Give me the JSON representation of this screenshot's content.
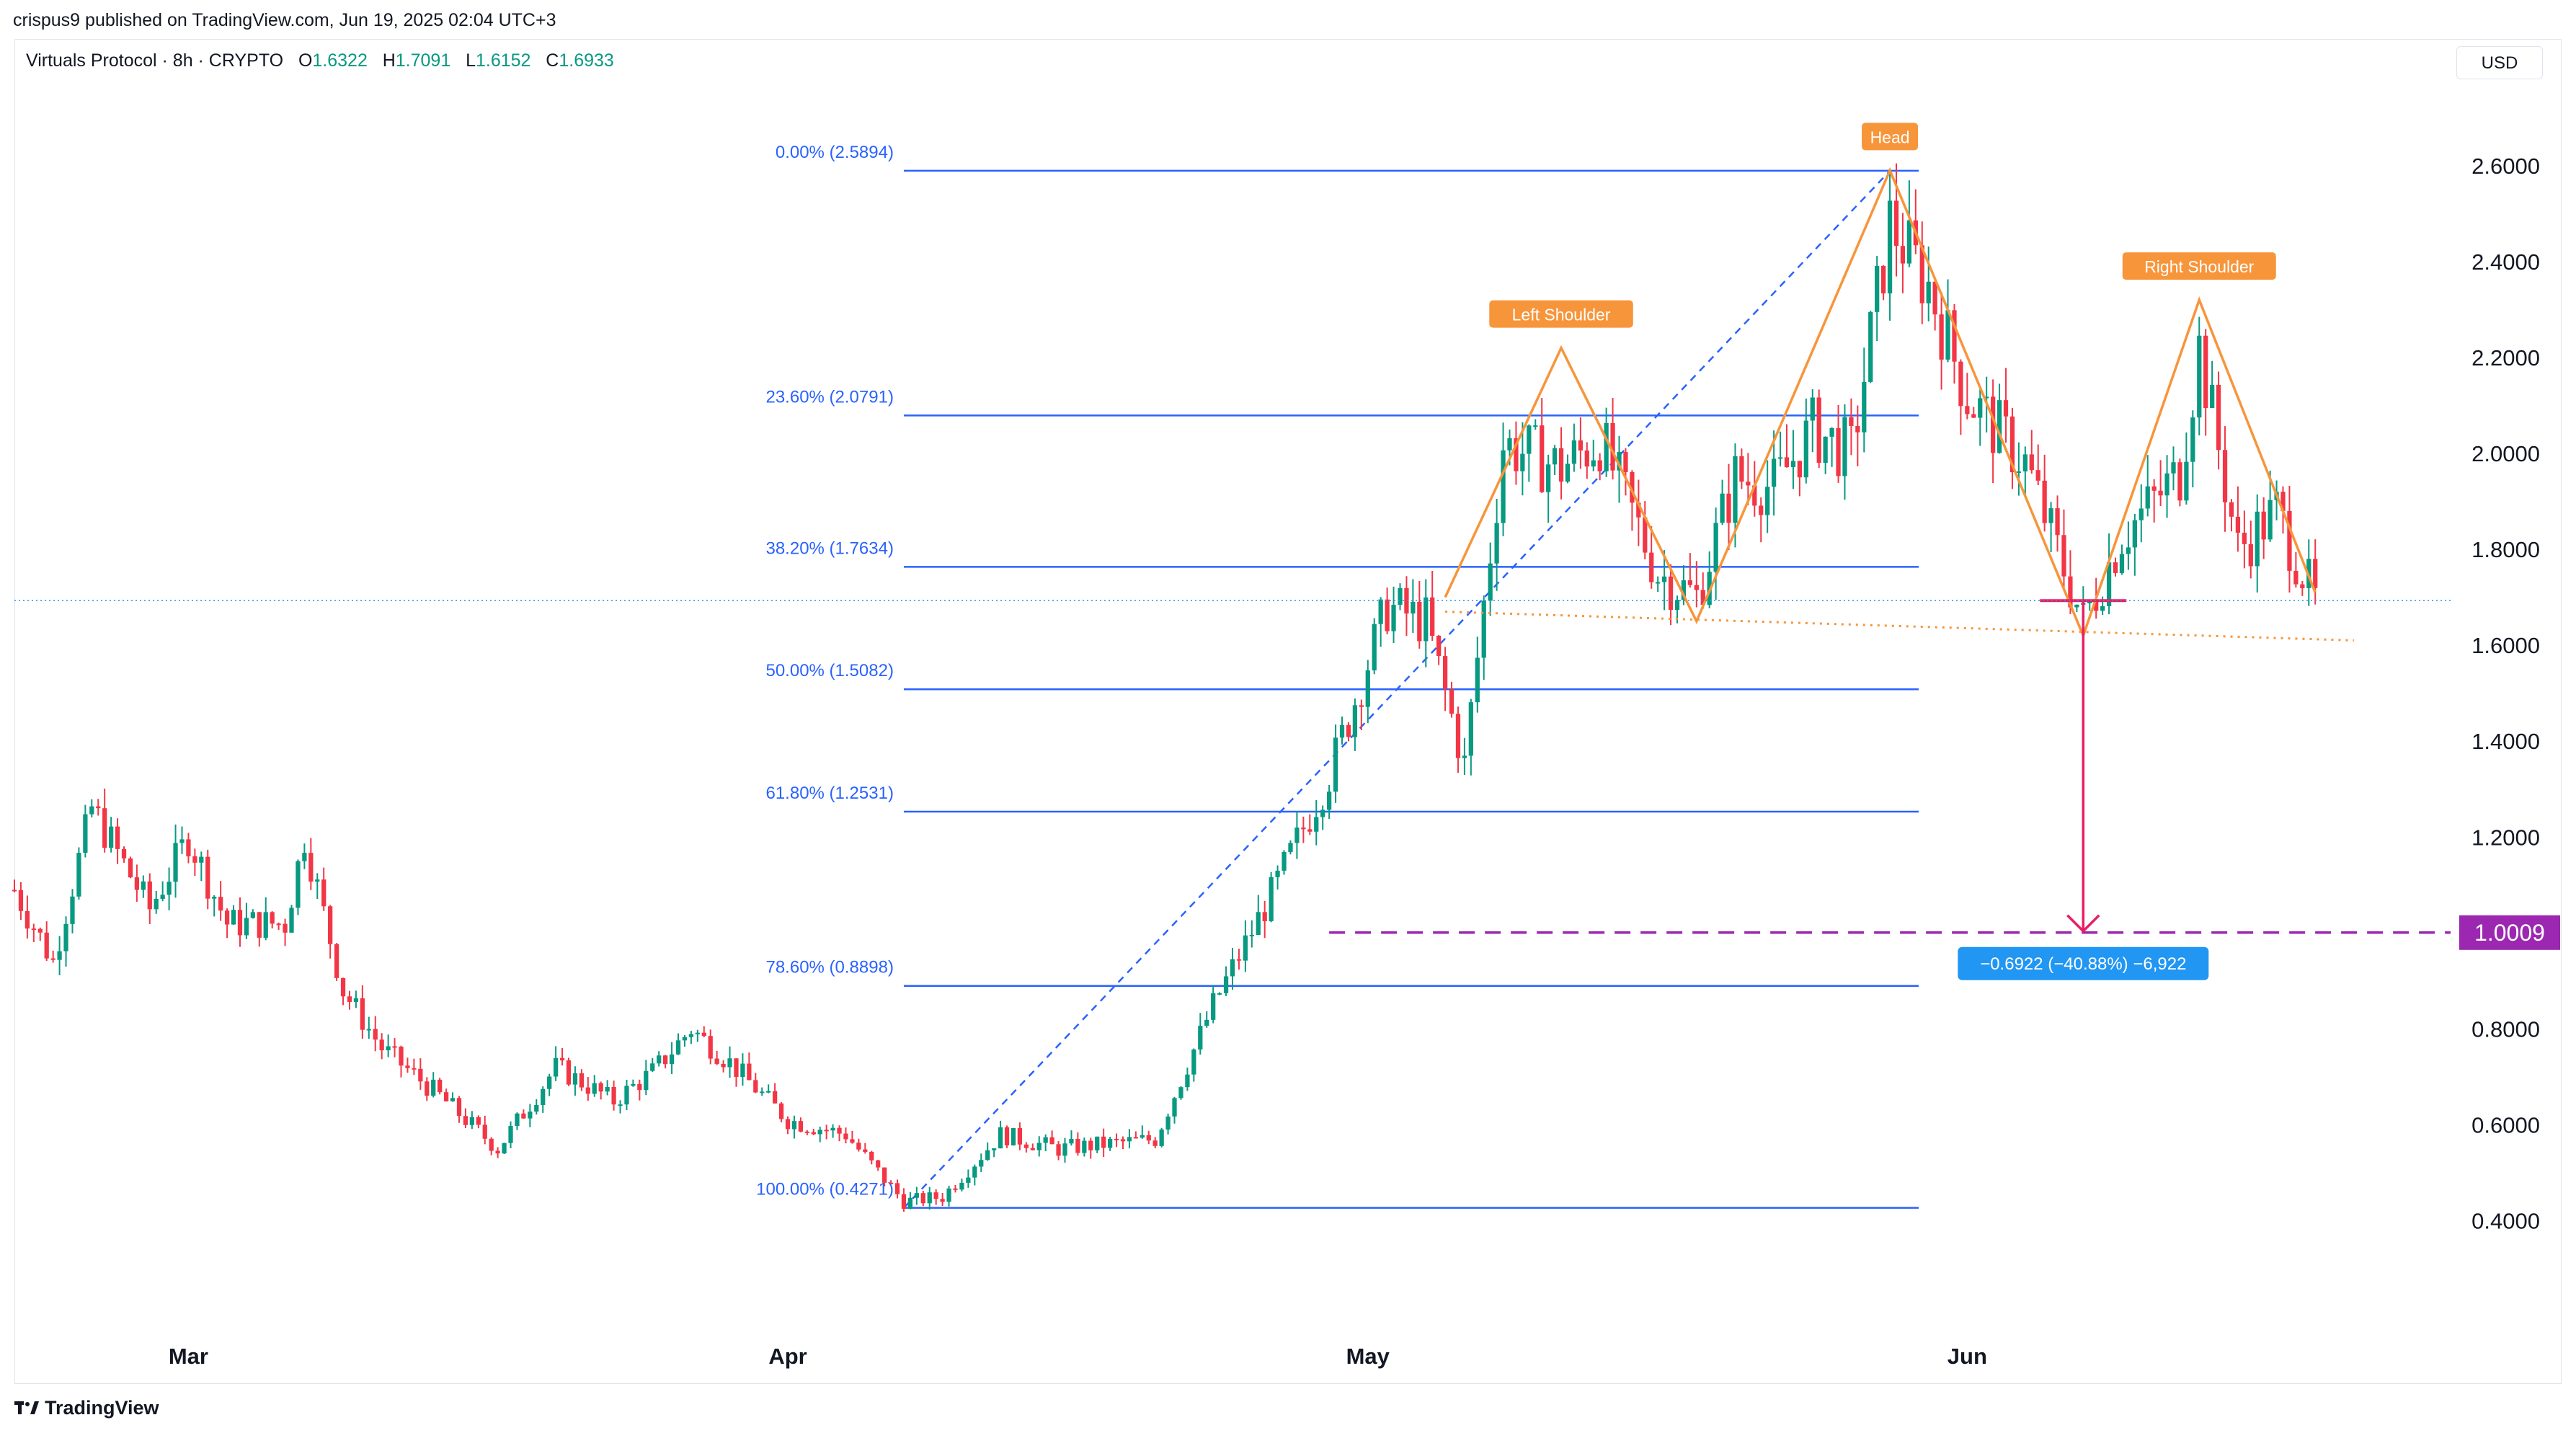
{
  "header": {
    "publisher_line": "crispus9 published on TradingView.com, Jun 19, 2025 02:04 UTC+3",
    "symbol": "Virtuals Protocol · 8h · CRYPTO",
    "ohlc": {
      "o_label": "O",
      "o": "1.6322",
      "h_label": "H",
      "h": "1.7091",
      "l_label": "L",
      "l": "1.6152",
      "c_label": "C",
      "c": "1.6933"
    },
    "currency": "USD"
  },
  "footer": {
    "brand": "TradingView"
  },
  "colors": {
    "up": "#089981",
    "down": "#f23645",
    "fib": "#2962ff",
    "pattern": "#f7953b",
    "target": "#9c27b0",
    "measure": "#2196f3",
    "arrow": "#e91e63",
    "axis_text": "#131722"
  },
  "chart_data": {
    "type": "candlestick",
    "title": "",
    "y_axis": {
      "ticks": [
        0.4,
        0.6,
        0.8,
        1.0,
        1.2,
        1.4,
        1.6,
        1.8,
        2.0,
        2.2,
        2.4,
        2.6
      ],
      "tick_labels": [
        "0.4000",
        "0.6000",
        "0.8000",
        "1.0000",
        "1.2000",
        "1.4000",
        "1.6000",
        "1.8000",
        "2.0000",
        "2.2000",
        "2.4000",
        "2.6000"
      ],
      "range": [
        0.18,
        2.78
      ],
      "side": "right"
    },
    "x_axis": {
      "range": [
        "2025-02-20",
        "2025-06-26"
      ],
      "labels": [
        {
          "text": "Mar",
          "date": "2025-03-01"
        },
        {
          "text": "Apr",
          "date": "2025-04-01"
        },
        {
          "text": "May",
          "date": "2025-05-01"
        },
        {
          "text": "Jun",
          "date": "2025-06-01"
        }
      ]
    },
    "interval": "8h",
    "grid": false,
    "anchors": [
      {
        "date": "2025-02-20",
        "close": 1.09
      },
      {
        "date": "2025-02-22",
        "close": 0.94
      },
      {
        "date": "2025-02-24",
        "close": 1.26
      },
      {
        "date": "2025-02-27",
        "close": 1.05
      },
      {
        "date": "2025-03-01",
        "close": 1.2
      },
      {
        "date": "2025-03-03",
        "close": 1.02
      },
      {
        "date": "2025-03-06",
        "close": 1.02
      },
      {
        "date": "2025-03-07",
        "close": 1.2
      },
      {
        "date": "2025-03-09",
        "close": 0.88
      },
      {
        "date": "2025-03-11",
        "close": 0.76
      },
      {
        "date": "2025-03-14",
        "close": 0.66
      },
      {
        "date": "2025-03-17",
        "close": 0.55
      },
      {
        "date": "2025-03-20",
        "close": 0.72
      },
      {
        "date": "2025-03-23",
        "close": 0.65
      },
      {
        "date": "2025-03-25",
        "close": 0.71
      },
      {
        "date": "2025-03-27",
        "close": 0.8
      },
      {
        "date": "2025-03-29",
        "close": 0.73
      },
      {
        "date": "2025-04-01",
        "close": 0.61
      },
      {
        "date": "2025-04-04",
        "close": 0.58
      },
      {
        "date": "2025-04-07",
        "close": 0.44
      },
      {
        "date": "2025-04-09",
        "close": 0.45
      },
      {
        "date": "2025-04-12",
        "close": 0.58
      },
      {
        "date": "2025-04-15",
        "close": 0.55
      },
      {
        "date": "2025-04-20",
        "close": 0.57
      },
      {
        "date": "2025-04-23",
        "close": 0.85
      },
      {
        "date": "2025-04-26",
        "close": 1.08
      },
      {
        "date": "2025-04-29",
        "close": 1.33
      },
      {
        "date": "2025-05-02",
        "close": 1.68
      },
      {
        "date": "2025-05-04",
        "close": 1.65
      },
      {
        "date": "2025-05-06",
        "close": 1.35
      },
      {
        "date": "2025-05-08",
        "close": 2.02
      },
      {
        "date": "2025-05-11",
        "close": 1.97
      },
      {
        "date": "2025-05-13",
        "close": 2.03
      },
      {
        "date": "2025-05-16",
        "close": 1.75
      },
      {
        "date": "2025-05-18",
        "close": 1.7
      },
      {
        "date": "2025-05-20",
        "close": 1.95
      },
      {
        "date": "2025-05-22",
        "close": 1.93
      },
      {
        "date": "2025-05-24",
        "close": 2.05
      },
      {
        "date": "2025-05-26",
        "close": 2.0
      },
      {
        "date": "2025-05-28",
        "close": 2.48
      },
      {
        "date": "2025-05-30",
        "close": 2.35
      },
      {
        "date": "2025-06-01",
        "close": 2.12
      },
      {
        "date": "2025-06-04",
        "close": 1.98
      },
      {
        "date": "2025-06-07",
        "close": 1.65
      },
      {
        "date": "2025-06-09",
        "close": 1.83
      },
      {
        "date": "2025-06-12",
        "close": 1.96
      },
      {
        "date": "2025-06-13",
        "close": 2.22
      },
      {
        "date": "2025-06-15",
        "close": 1.8
      },
      {
        "date": "2025-06-17",
        "close": 1.88
      },
      {
        "date": "2025-06-19",
        "close": 1.69
      }
    ],
    "fib_levels": [
      {
        "label": "0.00% (2.5894)",
        "price": 2.5894
      },
      {
        "label": "23.60% (2.0791)",
        "price": 2.0791
      },
      {
        "label": "38.20% (1.7634)",
        "price": 1.7634
      },
      {
        "label": "50.00% (1.5082)",
        "price": 1.5082
      },
      {
        "label": "61.80% (1.2531)",
        "price": 1.2531
      },
      {
        "label": "78.60% (0.8898)",
        "price": 0.8898
      },
      {
        "label": "100.00% (0.4271)",
        "price": 0.4271
      }
    ],
    "fib_range": {
      "start_date": "2025-04-07",
      "end_date": "2025-05-28"
    },
    "fib_trend": {
      "from": {
        "date": "2025-04-07",
        "price": 0.427
      },
      "to": {
        "date": "2025-05-28",
        "price": 2.589
      }
    },
    "pattern": {
      "path": [
        {
          "date": "2025-05-05",
          "price": 1.7
        },
        {
          "date": "2025-05-11",
          "price": 2.22
        },
        {
          "date": "2025-05-18",
          "price": 1.65
        },
        {
          "date": "2025-05-28",
          "price": 2.59
        },
        {
          "date": "2025-06-07",
          "price": 1.62
        },
        {
          "date": "2025-06-13",
          "price": 2.32
        },
        {
          "date": "2025-06-19",
          "price": 1.71
        }
      ],
      "neckline": {
        "from": {
          "date": "2025-05-05",
          "price": 1.67
        },
        "to": {
          "date": "2025-06-21",
          "price": 1.61
        }
      },
      "labels": [
        {
          "text": "Left Shoulder",
          "date": "2025-05-11",
          "price": 2.22
        },
        {
          "text": "Head",
          "date": "2025-05-28",
          "price": 2.59
        },
        {
          "text": "Right Shoulder",
          "date": "2025-06-13",
          "price": 2.32
        }
      ]
    },
    "target": {
      "price": 1.0009,
      "label": "1.0009",
      "from_date": "2025-04-29",
      "to_date": "2025-06-26"
    },
    "measure": {
      "date": "2025-06-07",
      "from_price": 1.6931,
      "to_price": 1.0009,
      "label": "−0.6922 (−40.88%) −6,922"
    },
    "current_price": 1.6933
  }
}
